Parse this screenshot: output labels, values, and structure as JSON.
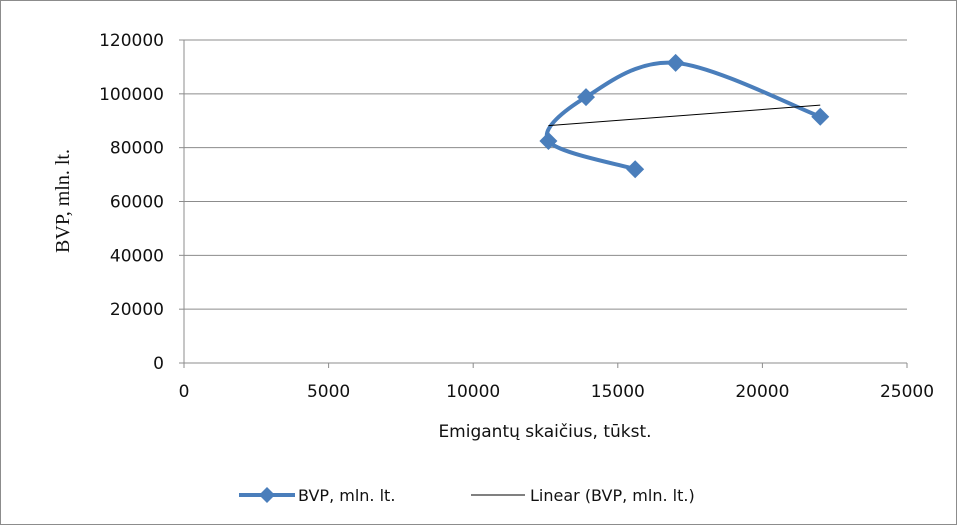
{
  "chart_data": {
    "type": "scatter",
    "title": "",
    "xlabel": "Emigantų skaičius, tūkst.",
    "ylabel": "BVP, mln. lt.",
    "xlim": [
      0,
      25000
    ],
    "ylim": [
      0,
      120000
    ],
    "x_ticks": [
      "0",
      "5000",
      "10000",
      "15000",
      "20000",
      "25000"
    ],
    "y_ticks": [
      "0",
      "20000",
      "40000",
      "60000",
      "80000",
      "100000",
      "120000"
    ],
    "grid": "horizontal",
    "legend_position": "bottom",
    "series": [
      {
        "name": "BVP, mln. lt.",
        "style": "smooth-line-with-diamond-markers",
        "color": "#4a7ebb",
        "points": [
          {
            "x": 15600,
            "y": 72000
          },
          {
            "x": 12600,
            "y": 82500
          },
          {
            "x": 13900,
            "y": 98800
          },
          {
            "x": 17000,
            "y": 111500
          },
          {
            "x": 22000,
            "y": 91500
          }
        ]
      },
      {
        "name": "Linear (BVP, mln. lt.)",
        "style": "trendline",
        "color": "#000000",
        "points": [
          {
            "x": 12600,
            "y": 88200
          },
          {
            "x": 22000,
            "y": 95800
          }
        ]
      }
    ]
  }
}
